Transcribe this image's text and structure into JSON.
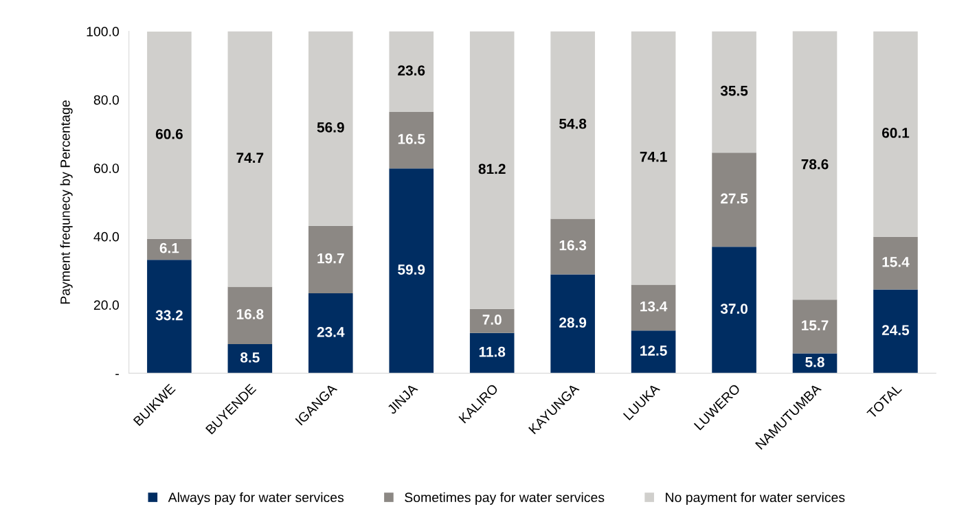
{
  "chart_data": {
    "type": "bar",
    "stacked": true,
    "ylabel": "Payment frequnecy by Percentage",
    "categories": [
      "BUIKWE",
      "BUYENDE",
      "IGANGA",
      "JINJA",
      "KALIRO",
      "KAYUNGA",
      "LUUKA",
      "LUWERO",
      "NAMUTUMBA",
      "TOTAL"
    ],
    "series": [
      {
        "name": "Always pay for water services",
        "color": "#002d62",
        "values": [
          33.2,
          8.5,
          23.4,
          59.9,
          11.8,
          28.9,
          12.5,
          37.0,
          5.8,
          24.5
        ],
        "value_labels": [
          "33.2",
          "8.5",
          "23.4",
          "59.9",
          "11.8",
          "28.9",
          "12.5",
          "37.0",
          "5.8",
          "24.5"
        ]
      },
      {
        "name": "Sometimes pay for water services",
        "color": "#8c8884",
        "values": [
          6.1,
          16.8,
          19.7,
          16.5,
          7.0,
          16.3,
          13.4,
          27.5,
          15.7,
          15.4
        ],
        "value_labels": [
          "6.1",
          "16.8",
          "19.7",
          "16.5",
          "7.0",
          "16.3",
          "13.4",
          "27.5",
          "15.7",
          "15.4"
        ]
      },
      {
        "name": "No payment for water services",
        "color": "#d0cfcc",
        "values": [
          60.6,
          74.7,
          56.9,
          23.6,
          81.2,
          54.8,
          74.1,
          35.5,
          78.6,
          60.1
        ],
        "value_labels": [
          "60.6",
          "74.7",
          "56.9",
          "23.6",
          "81.2",
          "54.8",
          "74.1",
          "35.5",
          "78.6",
          "60.1"
        ]
      }
    ],
    "ylim": [
      0,
      100
    ],
    "yticks": [
      {
        "value": 0,
        "label": "-"
      },
      {
        "value": 20,
        "label": "20.0"
      },
      {
        "value": 40,
        "label": "40.0"
      },
      {
        "value": 60,
        "label": "60.0"
      },
      {
        "value": 80,
        "label": "80.0"
      },
      {
        "value": 100,
        "label": "100.0"
      }
    ],
    "grid": false,
    "legend": "bottom"
  }
}
